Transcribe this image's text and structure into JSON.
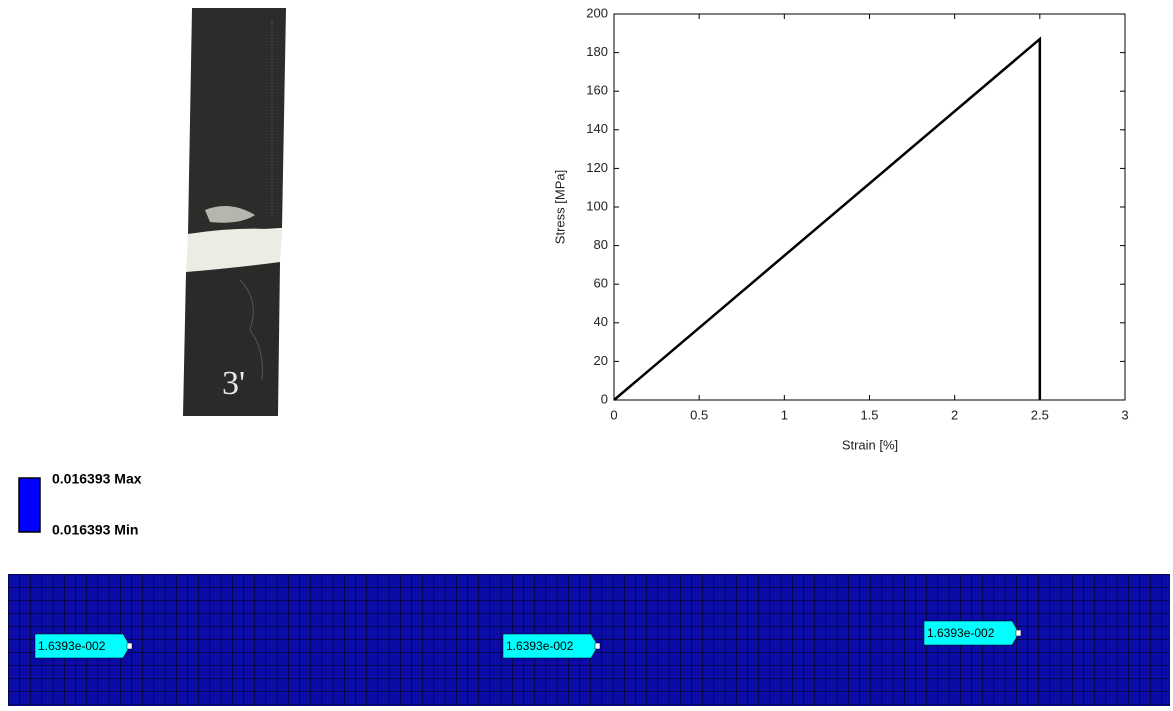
{
  "photo_label": "3'",
  "chart_data": {
    "type": "line",
    "x": [
      0,
      2.5,
      2.5
    ],
    "values": [
      0,
      187,
      0
    ],
    "color": "#000000",
    "xlabel": "Strain [%]",
    "ylabel": "Stress [MPa]",
    "xlim": [
      0,
      3
    ],
    "xticks": [
      0,
      0.5,
      1,
      1.5,
      2,
      2.5,
      3
    ],
    "ylim": [
      0,
      200
    ],
    "yticks": [
      0,
      20,
      40,
      60,
      80,
      100,
      120,
      140,
      160,
      180,
      200
    ],
    "grid": false
  },
  "legend": {
    "max": "0.016393 Max",
    "min": "0.016393 Min"
  },
  "probes": [
    "1.6393e-002",
    "1.6393e-002",
    "1.6393e-002"
  ]
}
